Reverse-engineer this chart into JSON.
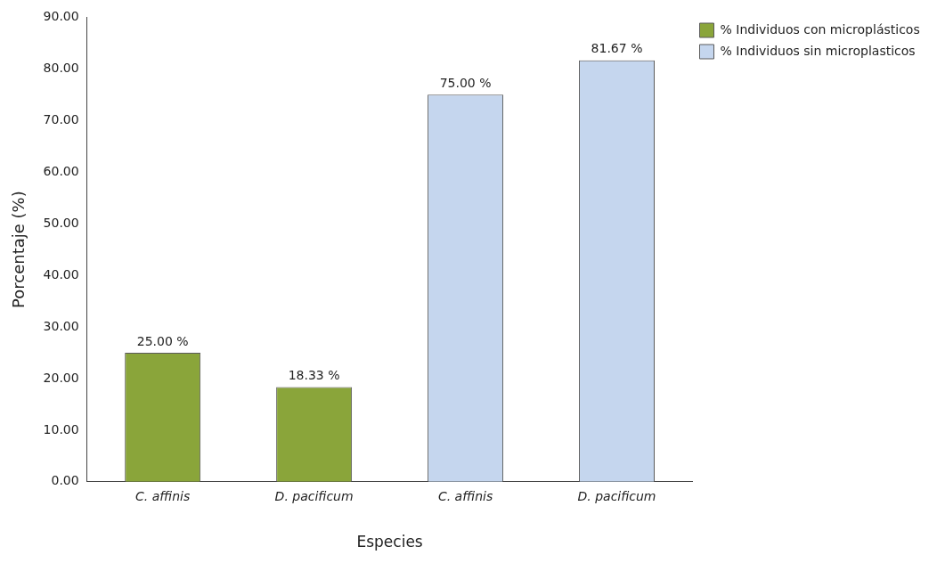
{
  "chart_data": {
    "type": "bar",
    "xlabel": "Especies",
    "ylabel": "Porcentaje (%)",
    "categories": [
      "C. affinis",
      "D. pacificum",
      "C. affinis",
      "D. pacificum"
    ],
    "series": [
      {
        "name": "% Individuos con microplásticos",
        "color": "#8aa53a",
        "values": [
          25.0,
          18.33,
          null,
          null
        ],
        "value_labels": [
          "25.00 %",
          "18.33 %",
          null,
          null
        ]
      },
      {
        "name": "% Individuos sin microplasticos",
        "color": "#c5d6ee",
        "values": [
          null,
          null,
          75.0,
          81.67
        ],
        "value_labels": [
          null,
          null,
          "75.00 %",
          "81.67 %"
        ]
      }
    ],
    "ylim": [
      0,
      90
    ],
    "yticks": [
      {
        "value": 0,
        "label": "0.00"
      },
      {
        "value": 10,
        "label": "10.00"
      },
      {
        "value": 20,
        "label": "20.00"
      },
      {
        "value": 30,
        "label": "30.00"
      },
      {
        "value": 40,
        "label": "40.00"
      },
      {
        "value": 50,
        "label": "50.00"
      },
      {
        "value": 60,
        "label": "60.00"
      },
      {
        "value": 70,
        "label": "70.00"
      },
      {
        "value": 80,
        "label": "80.00"
      },
      {
        "value": 90,
        "label": "90.00"
      }
    ],
    "grid": false,
    "legend": "top right"
  }
}
